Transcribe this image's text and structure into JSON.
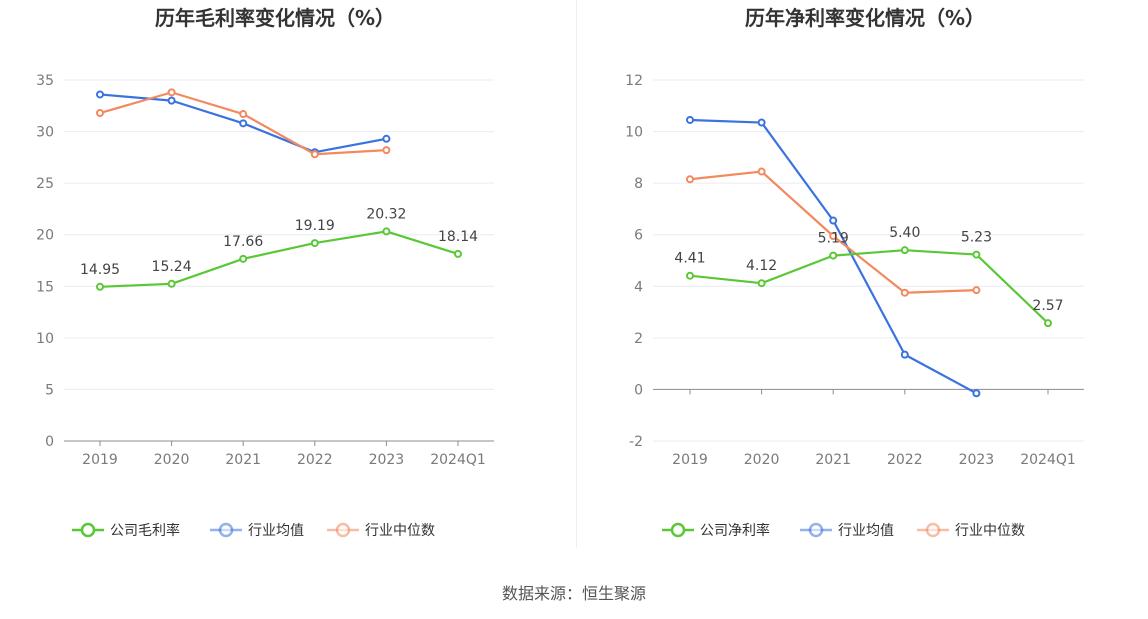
{
  "source_label": "数据来源：恒生聚源",
  "colors": {
    "company": "#5ac737",
    "industry_avg": "#3a72e0",
    "industry_median": "#f2895f",
    "grid": "#e9ebf3",
    "axis": "#8c8c8c"
  },
  "chart_data": [
    {
      "type": "line",
      "title": "历年毛利率变化情况（%）",
      "categories": [
        "2019",
        "2020",
        "2021",
        "2022",
        "2023",
        "2024Q1"
      ],
      "ylim": [
        0,
        35
      ],
      "yticks": [
        0,
        5,
        10,
        15,
        20,
        25,
        30,
        35
      ],
      "ytick_labels": [
        "0",
        "5",
        "10",
        "15",
        "20",
        "25",
        "30",
        "35"
      ],
      "grid": true,
      "legend_position": "bottom",
      "series": [
        {
          "name": "公司毛利率",
          "color": "#5ac737",
          "values": [
            14.95,
            15.24,
            17.66,
            19.19,
            20.32,
            18.14
          ],
          "labels": [
            "14.95",
            "15.24",
            "17.66",
            "19.19",
            "20.32",
            "18.14"
          ]
        },
        {
          "name": "行业均值",
          "color": "#3a72e0",
          "values": [
            33.6,
            33.0,
            30.8,
            28.0,
            29.3,
            null
          ]
        },
        {
          "name": "行业中位数",
          "color": "#f2895f",
          "values": [
            31.8,
            33.8,
            31.7,
            27.8,
            28.2,
            null
          ]
        }
      ]
    },
    {
      "type": "line",
      "title": "历年净利率变化情况（%）",
      "categories": [
        "2019",
        "2020",
        "2021",
        "2022",
        "2023",
        "2024Q1"
      ],
      "ylim": [
        -2,
        12
      ],
      "yticks": [
        -2,
        0,
        2,
        4,
        6,
        8,
        10,
        12
      ],
      "ytick_labels": [
        "-2",
        "0",
        "2",
        "4",
        "6",
        "8",
        "10",
        "12"
      ],
      "grid": true,
      "legend_position": "bottom",
      "series": [
        {
          "name": "公司净利率",
          "color": "#5ac737",
          "values": [
            4.41,
            4.12,
            5.19,
            5.4,
            5.23,
            2.57
          ],
          "labels": [
            "4.41",
            "4.12",
            "5.19",
            "5.40",
            "5.23",
            "2.57"
          ]
        },
        {
          "name": "行业均值",
          "color": "#3a72e0",
          "values": [
            10.45,
            10.35,
            6.55,
            1.35,
            -0.15,
            null
          ]
        },
        {
          "name": "行业中位数",
          "color": "#f2895f",
          "values": [
            8.15,
            8.45,
            5.95,
            3.75,
            3.85,
            null
          ]
        }
      ]
    }
  ]
}
